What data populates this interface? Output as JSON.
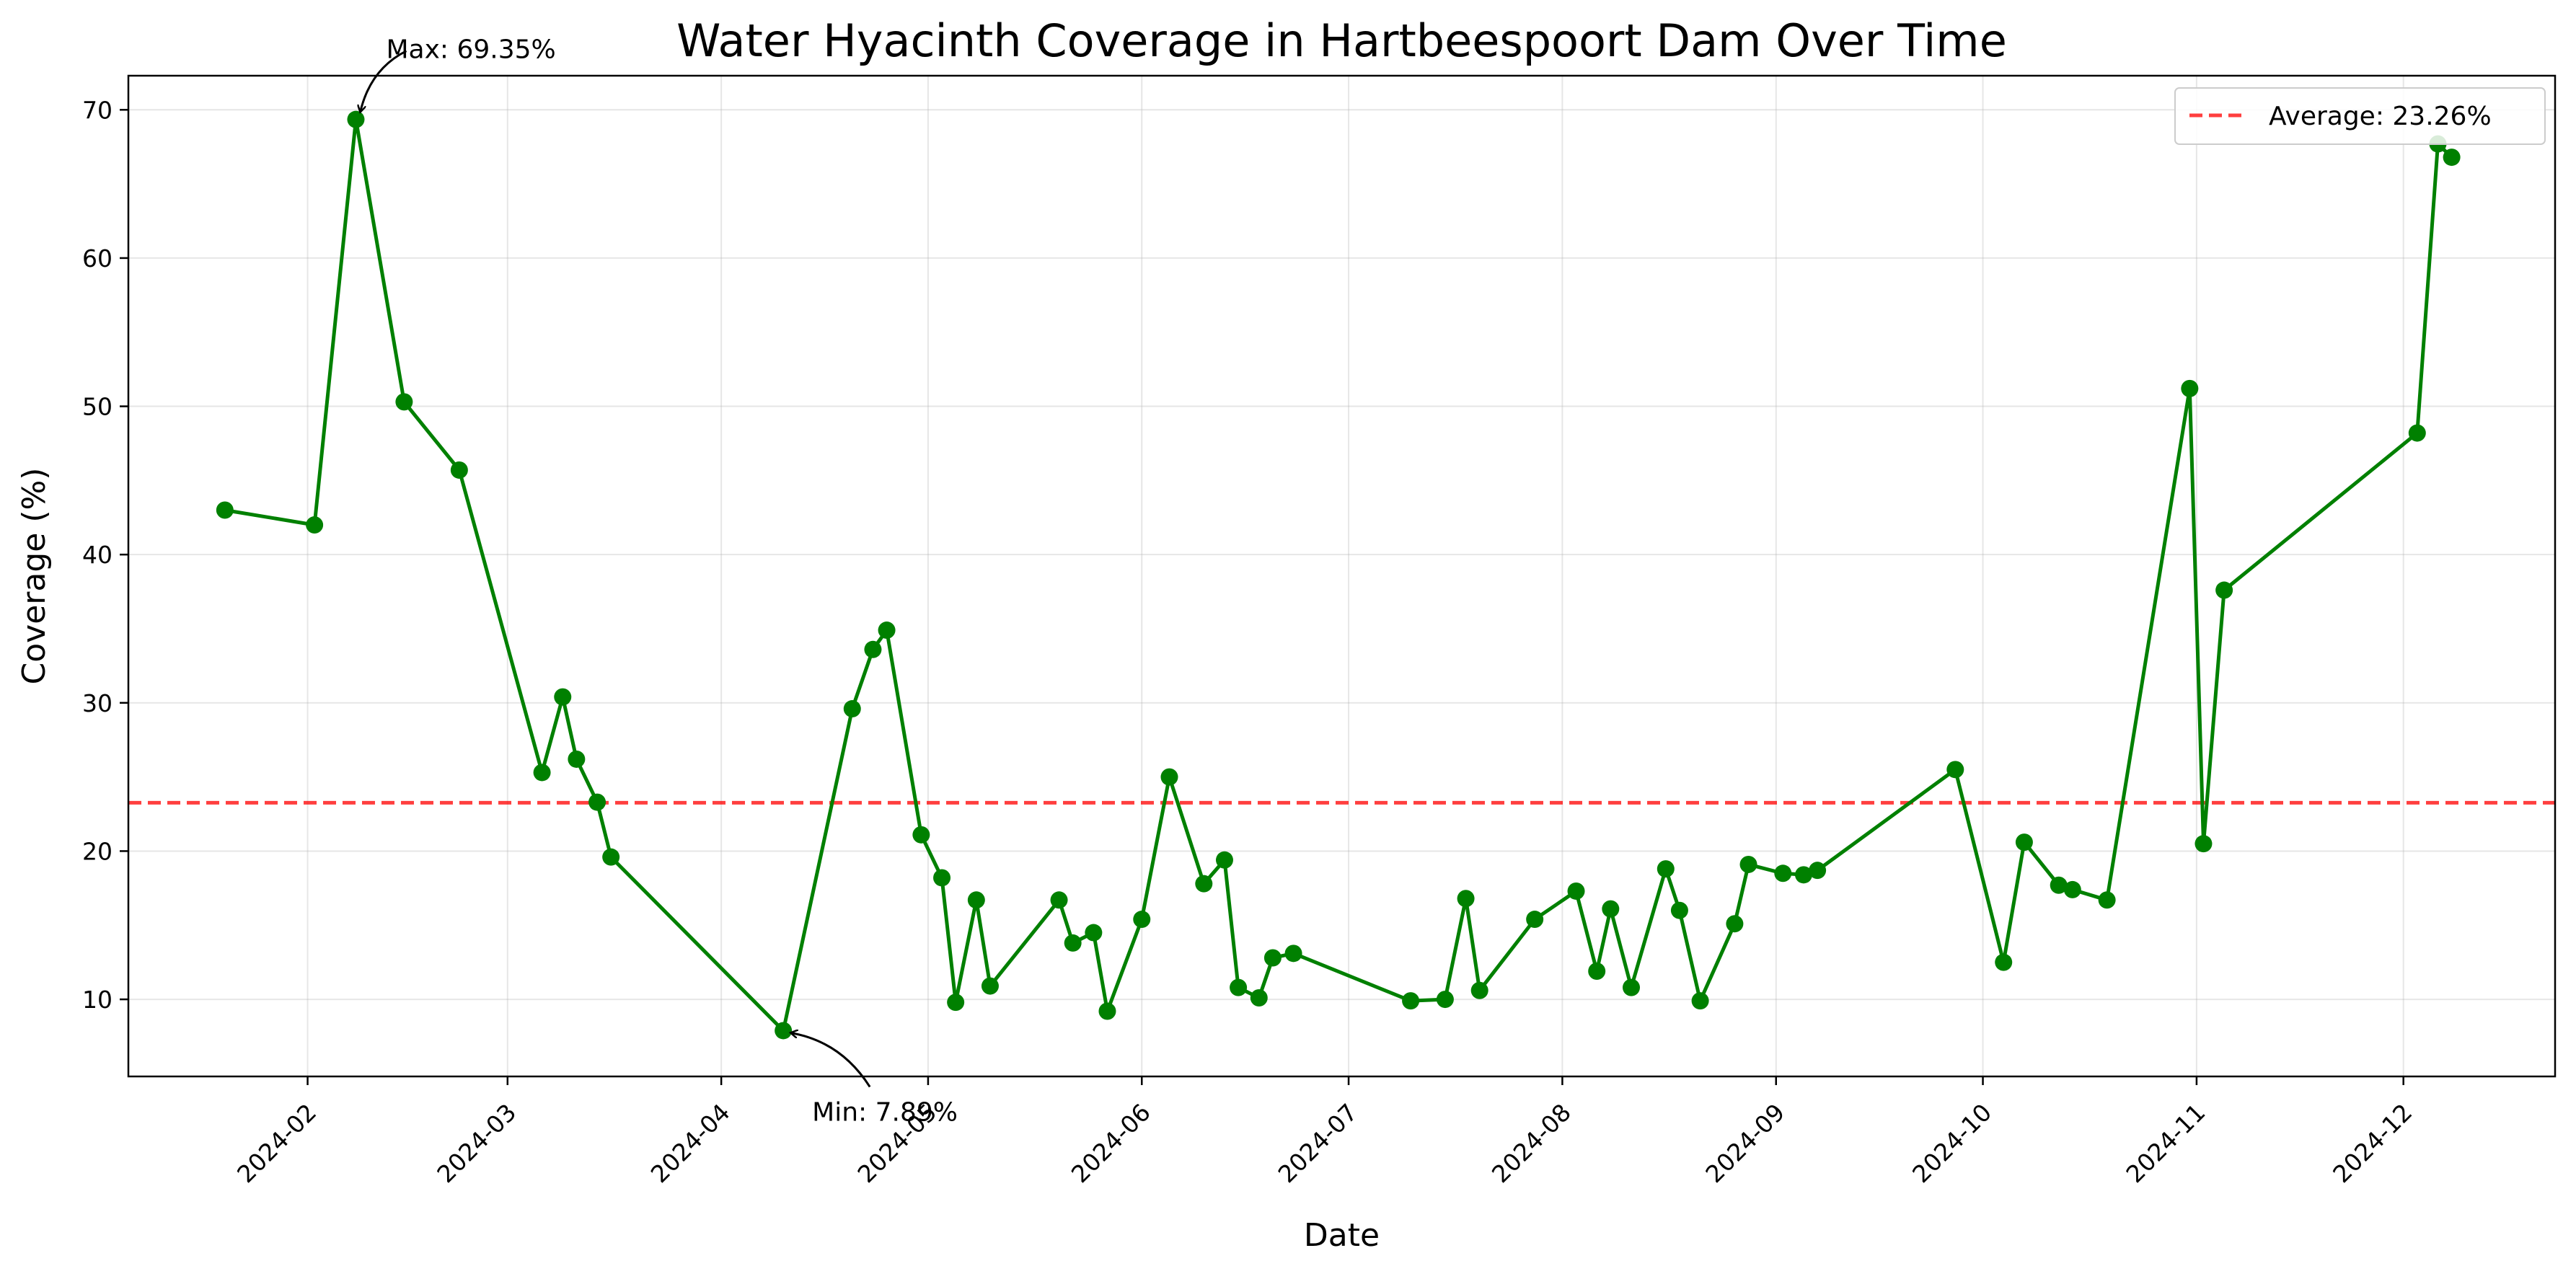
{
  "chart_data": {
    "type": "line",
    "title": "Water Hyacinth Coverage in Hartbeespoort Dam Over Time",
    "xlabel": "Date",
    "ylabel": "Coverage (%)",
    "ylim": [
      4.8,
      72.3
    ],
    "xlim": [
      "2024-01-06",
      "2024-12-23"
    ],
    "grid": true,
    "line_color": "#008000",
    "marker_color": "#008000",
    "average_color": "#ff0000",
    "yticks": [
      10,
      20,
      30,
      40,
      50,
      60,
      70
    ],
    "xticks": [
      "2024-02",
      "2024-03",
      "2024-04",
      "2024-05",
      "2024-06",
      "2024-07",
      "2024-08",
      "2024-09",
      "2024-10",
      "2024-11",
      "2024-12"
    ],
    "average": {
      "value": 23.26,
      "label": "Average: 23.26%"
    },
    "legend": {
      "placement": "upper-right",
      "entries": [
        "Average: 23.26%"
      ]
    },
    "annotations": [
      {
        "text": "Max: 69.35%",
        "x": "2024-02-08",
        "y": 69.35
      },
      {
        "text": "Min: 7.89%",
        "x": "2024-04-10",
        "y": 7.89
      }
    ],
    "series": [
      {
        "x": [
          "2024-01-20",
          "2024-02-02",
          "2024-02-08",
          "2024-02-15",
          "2024-02-23",
          "2024-03-06",
          "2024-03-09",
          "2024-03-11",
          "2024-03-14",
          "2024-03-16",
          "2024-04-10",
          "2024-04-20",
          "2024-04-23",
          "2024-04-25",
          "2024-04-30",
          "2024-05-03",
          "2024-05-05",
          "2024-05-08",
          "2024-05-10",
          "2024-05-20",
          "2024-05-22",
          "2024-05-25",
          "2024-05-27",
          "2024-06-01",
          "2024-06-05",
          "2024-06-10",
          "2024-06-13",
          "2024-06-15",
          "2024-06-18",
          "2024-06-20",
          "2024-06-23",
          "2024-07-10",
          "2024-07-15",
          "2024-07-18",
          "2024-07-20",
          "2024-07-28",
          "2024-08-03",
          "2024-08-06",
          "2024-08-08",
          "2024-08-11",
          "2024-08-16",
          "2024-08-18",
          "2024-08-21",
          "2024-08-26",
          "2024-08-28",
          "2024-09-02",
          "2024-09-05",
          "2024-09-07",
          "2024-09-27",
          "2024-10-04",
          "2024-10-07",
          "2024-10-12",
          "2024-10-14",
          "2024-10-19",
          "2024-10-31",
          "2024-11-02",
          "2024-11-05",
          "2024-12-03",
          "2024-12-06",
          "2024-12-08"
        ],
        "values": [
          43.0,
          42.0,
          69.35,
          50.3,
          45.7,
          25.3,
          30.4,
          26.2,
          23.3,
          19.6,
          7.89,
          29.6,
          33.6,
          34.9,
          21.1,
          18.2,
          9.8,
          16.7,
          10.9,
          16.7,
          13.8,
          14.5,
          9.2,
          15.4,
          25.0,
          17.8,
          19.4,
          10.8,
          10.1,
          12.8,
          13.1,
          9.9,
          10.0,
          16.8,
          10.6,
          15.4,
          17.3,
          11.9,
          16.1,
          10.8,
          18.8,
          16.0,
          9.9,
          15.1,
          19.1,
          18.5,
          18.4,
          18.7,
          25.5,
          12.5,
          20.6,
          17.7,
          17.4,
          16.7,
          51.2,
          20.5,
          37.6,
          48.2,
          67.7,
          66.8
        ]
      }
    ]
  }
}
